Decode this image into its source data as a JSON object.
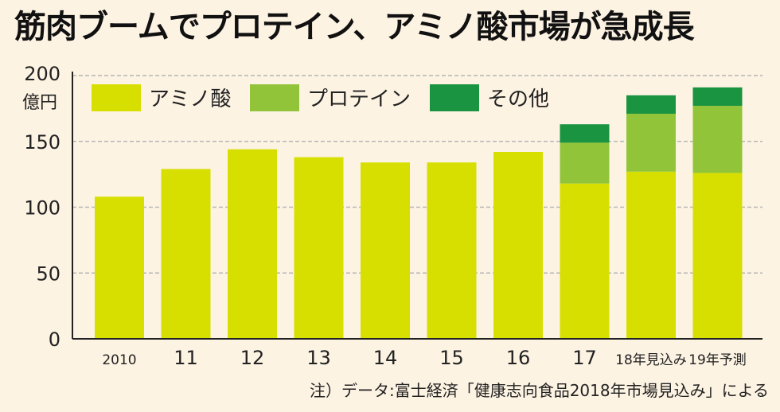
{
  "title": "筋肉ブームでプロテイン、アミノ酸市場が急成長",
  "source_note": "注）データ:富士経済「健康志向食品2018年市場見込み」による",
  "colors": {
    "background": "#fdf3e3",
    "amino": "#d7df00",
    "protein": "#92c43a",
    "other": "#1a9440",
    "grid": "#b5b5b5",
    "axis": "#222222"
  },
  "chart_data": {
    "type": "bar",
    "stacked": true,
    "categories": [
      "2010",
      "11",
      "12",
      "13",
      "14",
      "15",
      "16",
      "17",
      "18年見込み",
      "19年予測"
    ],
    "series": [
      {
        "name": "アミノ酸",
        "color": "#d7df00",
        "values": [
          108,
          129,
          144,
          138,
          134,
          134,
          142,
          118,
          127,
          126
        ]
      },
      {
        "name": "プロテイン",
        "color": "#92c43a",
        "values": [
          0,
          0,
          0,
          0,
          0,
          0,
          0,
          31,
          44,
          51
        ]
      },
      {
        "name": "その他",
        "color": "#1a9440",
        "values": [
          0,
          0,
          0,
          0,
          0,
          0,
          0,
          14,
          14,
          14
        ]
      }
    ],
    "ylim": [
      0,
      200
    ],
    "yticks": [
      0,
      50,
      100,
      150,
      200
    ],
    "ylabel": "億円",
    "grid": true,
    "legend_position": "top-left"
  }
}
